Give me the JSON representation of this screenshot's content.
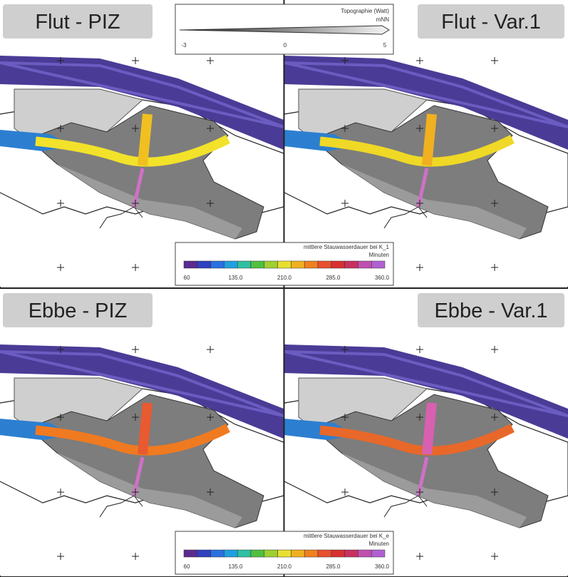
{
  "panels": [
    {
      "title": "Flut - PIZ"
    },
    {
      "title": "Flut - Var.1"
    },
    {
      "title": "Ebbe - PIZ"
    },
    {
      "title": "Ebbe - Var.1"
    }
  ],
  "topography_legend": {
    "title": "Topographie (Watt)",
    "unit": "mNN",
    "ticks": [
      "-3",
      "0",
      "5"
    ]
  },
  "colorbars": [
    {
      "title": "mittlere Stauwasserdauer bei K_1",
      "unit": "Minuten",
      "ticks": [
        "60",
        "135.0",
        "210.0",
        "285.0",
        "360.0"
      ]
    },
    {
      "title": "mittlere Stauwasserdauer bei K_e",
      "unit": "Minuten",
      "ticks": [
        "60",
        "135.0",
        "210.0",
        "285.0",
        "360.0"
      ]
    }
  ]
}
